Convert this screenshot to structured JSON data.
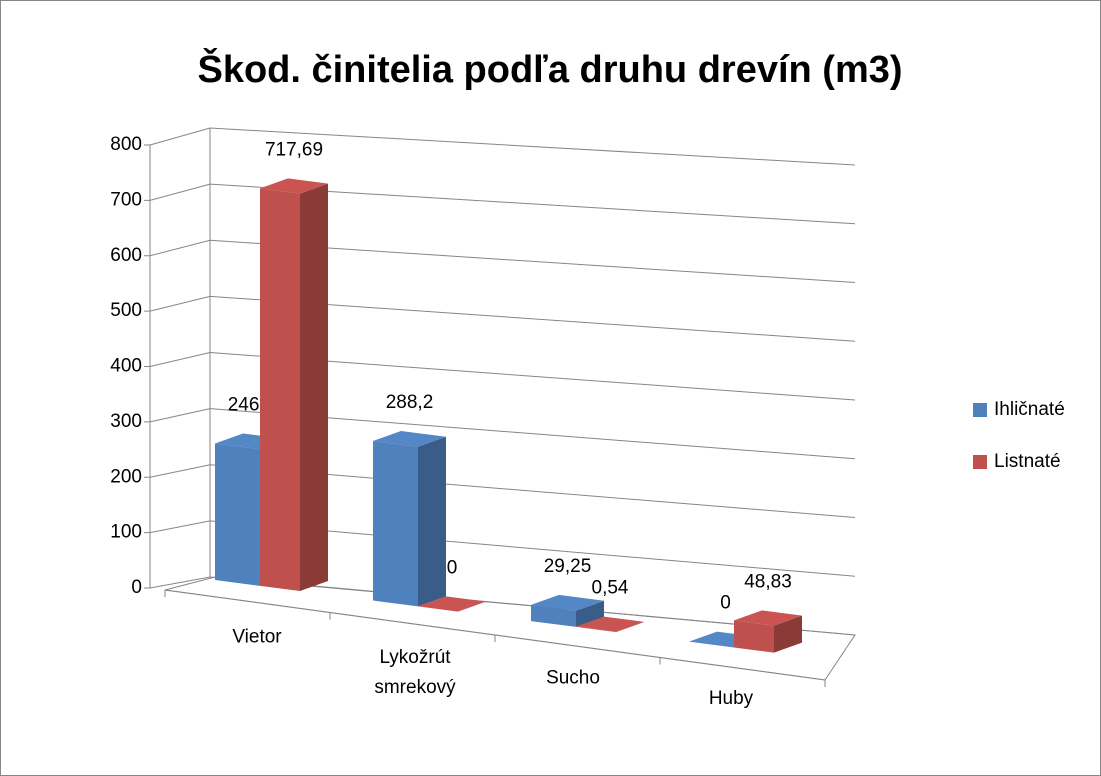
{
  "chart_data": {
    "type": "bar3d",
    "title": "Škod. činitelia podľa druhu drevín (m3)",
    "categories": [
      "Vietor",
      "Lykožrút smrekový",
      "Sucho",
      "Huby"
    ],
    "series": [
      {
        "name": "Ihličnaté",
        "color": "#4f81bd",
        "values": [
          246.6,
          288.2,
          29.25,
          0
        ],
        "value_labels": [
          "246,6",
          "288,2",
          "29,25",
          "0"
        ]
      },
      {
        "name": "Listnaté",
        "color": "#c0504d",
        "values": [
          717.69,
          0,
          0.54,
          48.83
        ],
        "value_labels": [
          "717,69",
          "0",
          "0,54",
          "48,83"
        ]
      }
    ],
    "ylim": [
      0,
      800
    ],
    "yticks": [
      0,
      100,
      200,
      300,
      400,
      500,
      600,
      700,
      800
    ],
    "grid": true,
    "legend": "right"
  }
}
